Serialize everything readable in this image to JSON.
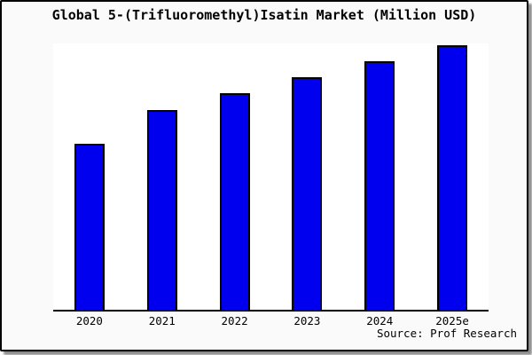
{
  "title": "Global 5-(Trifluoromethyl)Isatin Market (Million USD)",
  "source_note": "Source: Prof Research",
  "frame": {
    "background": "#fafafa",
    "plot_background": "#ffffff",
    "border_color": "#000000",
    "shadow_color": "#8e8e8e"
  },
  "chart_data": {
    "type": "bar",
    "title": "Global 5-(Trifluoromethyl)Isatin Market (Million USD)",
    "categories": [
      "2020",
      "2021",
      "2022",
      "2023",
      "2024",
      "2025e"
    ],
    "values": [
      62.5,
      74.9,
      81.2,
      87.2,
      93.3,
      99.4
    ],
    "values_unit": "relative bar height, % of plot height (y-axis is unlabeled in the chart)",
    "values_relative_to_2025e_max_100": [
      62.9,
      75.3,
      81.7,
      87.7,
      93.8,
      100
    ],
    "xlabel": "",
    "ylabel": "",
    "ylim": [
      0,
      100
    ],
    "grid": false,
    "legend": false,
    "y_axis_ticks_visible": false,
    "bar_color": "#0000ee",
    "bar_edge_color": "#000000",
    "source": "Source: Prof Research"
  }
}
